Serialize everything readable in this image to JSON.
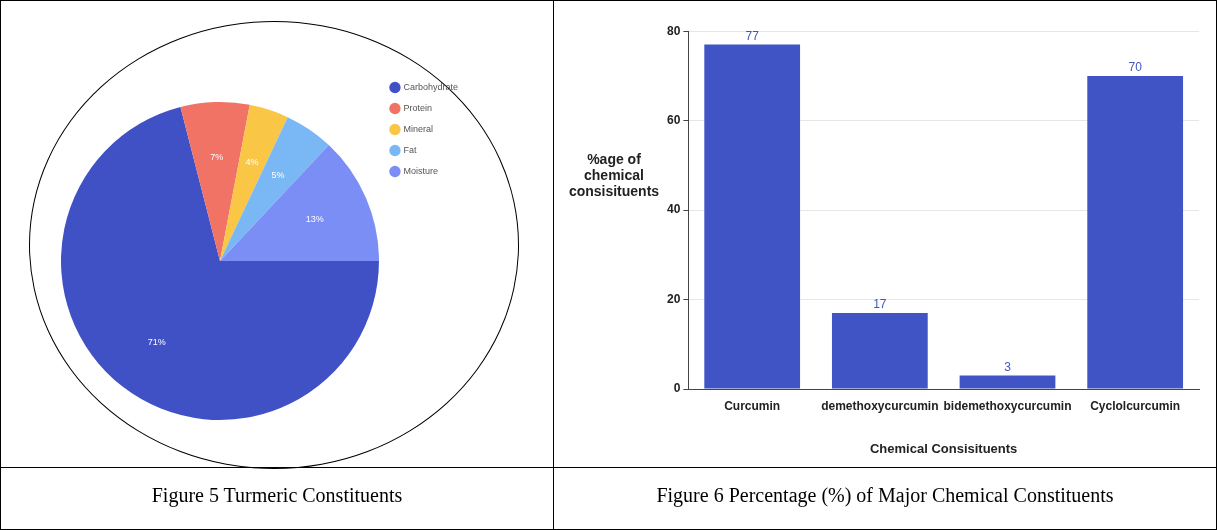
{
  "chart_data": [
    {
      "type": "pie",
      "categories": [
        "Carbohydrate",
        "Protein",
        "Mineral",
        "Fat",
        "Moisture"
      ],
      "values": [
        71,
        7,
        4,
        5,
        13
      ],
      "colors": [
        "#3f51c5",
        "#f07365",
        "#f9c646",
        "#7ab8f5",
        "#7b8ef5"
      ],
      "value_labels": [
        "71%",
        "7%",
        "4%",
        "5%",
        "13%"
      ],
      "legend": "top right",
      "annotations": [
        "Figure 5 Turmeric Constituents"
      ]
    },
    {
      "type": "bar",
      "categories": [
        "Curcumin",
        "demethoxycurcumin",
        "bidemethoxycurcumin",
        "Cyclolcurcumin"
      ],
      "values": [
        77,
        17,
        3,
        70
      ],
      "color": "#4054c5",
      "data_labels": true,
      "xlabel": "Chemical Consisituents",
      "ylabel": "%age of chemical consisituents",
      "ylim": [
        0,
        80
      ],
      "yticks": [
        0,
        20,
        40,
        60,
        80
      ],
      "grid": "y",
      "annotations": [
        "Figure 6 Percentage (%) of Major Chemical Constituents"
      ]
    }
  ]
}
